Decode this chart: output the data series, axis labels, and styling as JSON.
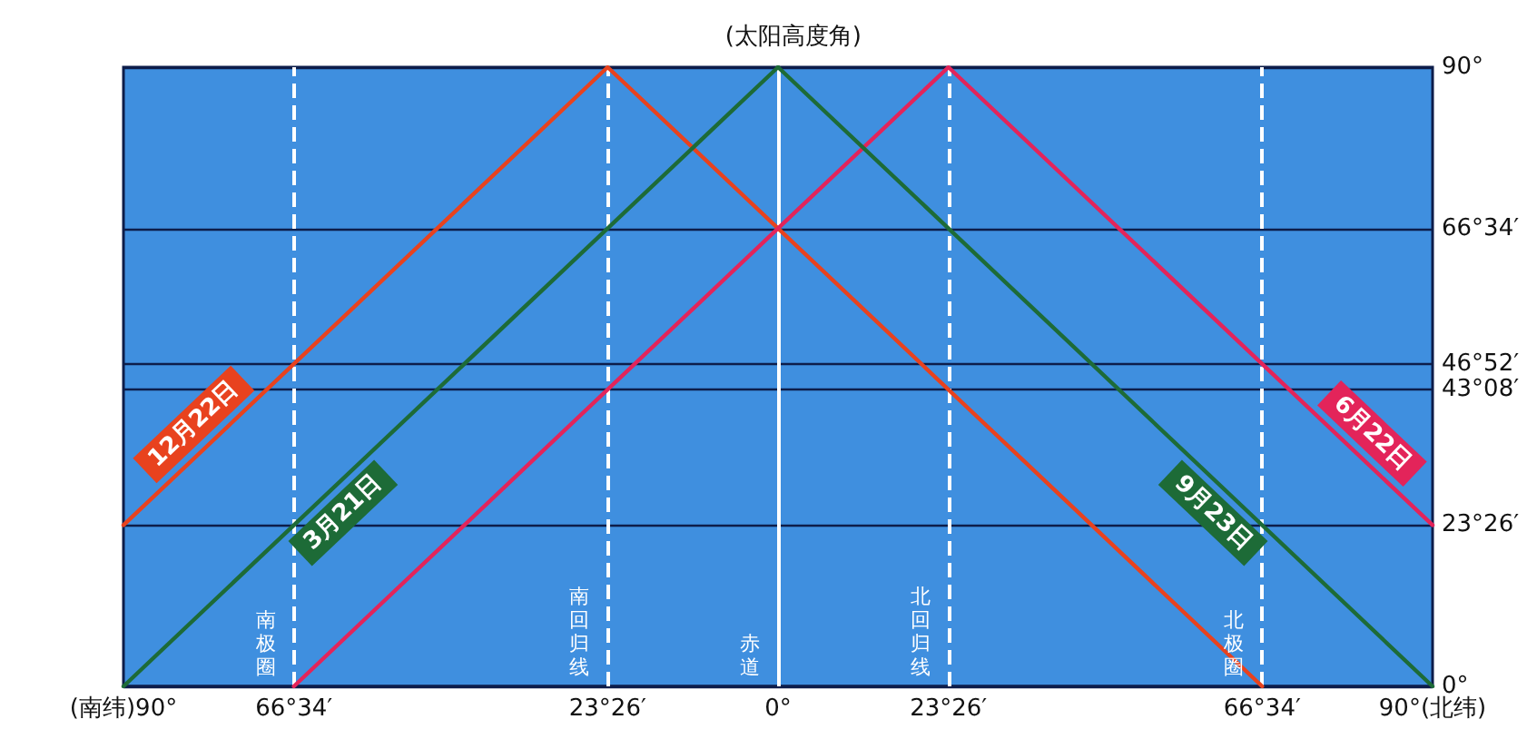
{
  "chart_data": {
    "type": "line",
    "ylabel": "(太阳高度角)",
    "series": [
      {
        "name": "12月22日",
        "color": "#e8421e",
        "x": [
          -90,
          -23.43,
          66.57
        ],
        "values": [
          23.43,
          90,
          0
        ]
      },
      {
        "name": "3月21日",
        "color": "#1d6b37",
        "x": [
          -90,
          0
        ],
        "values": [
          0,
          90
        ]
      },
      {
        "name": "6月22日",
        "color": "#e3245a",
        "x": [
          -66.57,
          23.43,
          90
        ],
        "values": [
          0,
          90,
          23.43
        ]
      },
      {
        "name": "9月23日",
        "color": "#1d6b37",
        "x": [
          0,
          90
        ],
        "values": [
          90,
          0
        ]
      }
    ],
    "xlim": [
      -90,
      90
    ],
    "xticks": [
      {
        "value": -90,
        "label": "(南纬)90°"
      },
      {
        "value": -66.57,
        "label": "66°34′"
      },
      {
        "value": -23.43,
        "label": "23°26′"
      },
      {
        "value": 0,
        "label": "0°"
      },
      {
        "value": 23.43,
        "label": "23°26′"
      },
      {
        "value": 66.57,
        "label": "66°34′"
      },
      {
        "value": 90,
        "label": "90°(北纬)"
      }
    ],
    "ylim": [
      0,
      90
    ],
    "yticks": [
      {
        "value": 0,
        "label": "0°"
      },
      {
        "value": 23.43,
        "label": "23°26′"
      },
      {
        "value": 43.13,
        "label": "43°08′"
      },
      {
        "value": 46.87,
        "label": "46°52′"
      },
      {
        "value": 66.57,
        "label": "66°34′"
      },
      {
        "value": 90,
        "label": "90°"
      }
    ],
    "grid": "y",
    "marker": "none",
    "line_style": "solid",
    "legend": false,
    "ref_lines": [
      {
        "axis": "x",
        "value": -66.57,
        "label": "南极圈",
        "color": "#ffffff",
        "line_style": "dashed"
      },
      {
        "axis": "x",
        "value": -23.43,
        "label": "南回归线",
        "color": "#ffffff",
        "line_style": "dashed"
      },
      {
        "axis": "x",
        "value": 0,
        "label": "赤道",
        "color": "#ffffff",
        "line_style": "solid"
      },
      {
        "axis": "x",
        "value": 23.43,
        "label": "北回归线",
        "color": "#ffffff",
        "line_style": "dashed"
      },
      {
        "axis": "x",
        "value": 66.57,
        "label": "北极圈",
        "color": "#ffffff",
        "line_style": "dashed"
      }
    ]
  }
}
